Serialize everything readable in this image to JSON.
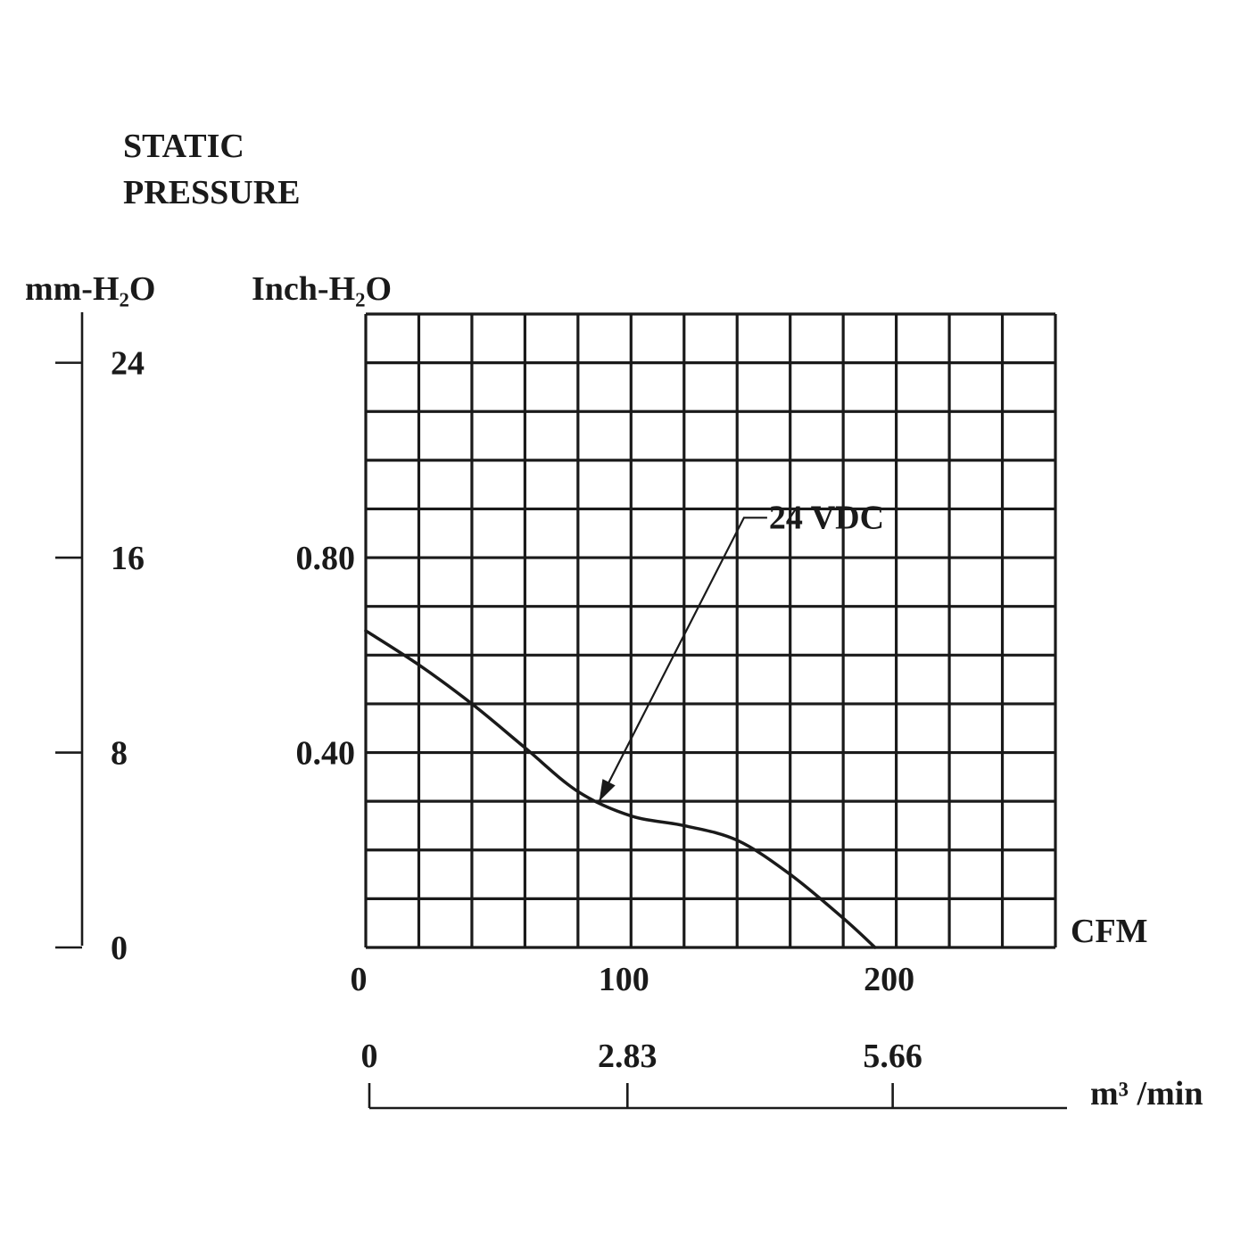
{
  "chart_data": {
    "type": "line",
    "title_lines": [
      "STATIC",
      "PRESSURE"
    ],
    "y_left_unit": "mm-H₂O",
    "y_right_unit": "Inch-H₂O",
    "x_unit": "CFM",
    "x2_unit": "m³ /min",
    "xlim": [
      0,
      260
    ],
    "ylim": [
      0,
      1.3
    ],
    "ylim_mm": [
      0,
      26
    ],
    "grid": true,
    "x_ticks": [
      {
        "value": 0,
        "label": "0"
      },
      {
        "value": 100,
        "label": "100"
      },
      {
        "value": 200,
        "label": "200"
      }
    ],
    "x2_ticks": [
      {
        "value": 0,
        "label": "0"
      },
      {
        "value": 100,
        "label": "2.83"
      },
      {
        "value": 200,
        "label": "5.66"
      }
    ],
    "y_ticks": [
      {
        "value": 0.4,
        "label": "0.40"
      },
      {
        "value": 0.8,
        "label": "0.80"
      }
    ],
    "y_mm_ticks": [
      {
        "value": 0,
        "label": "0"
      },
      {
        "value": 8,
        "label": "8"
      },
      {
        "value": 16,
        "label": "16"
      },
      {
        "value": 24,
        "label": "24"
      }
    ],
    "series": [
      {
        "name": "24 VDC",
        "points": [
          [
            0,
            0.65
          ],
          [
            20,
            0.58
          ],
          [
            40,
            0.5
          ],
          [
            60,
            0.41
          ],
          [
            80,
            0.32
          ],
          [
            100,
            0.27
          ],
          [
            120,
            0.25
          ],
          [
            140,
            0.22
          ],
          [
            160,
            0.15
          ],
          [
            180,
            0.06
          ],
          [
            192,
            0.0
          ]
        ]
      }
    ],
    "annotations": [
      {
        "text": "24 VDC",
        "series": "24 VDC",
        "point_x": 88,
        "label_at": [
          152,
          0.86
        ]
      }
    ]
  }
}
